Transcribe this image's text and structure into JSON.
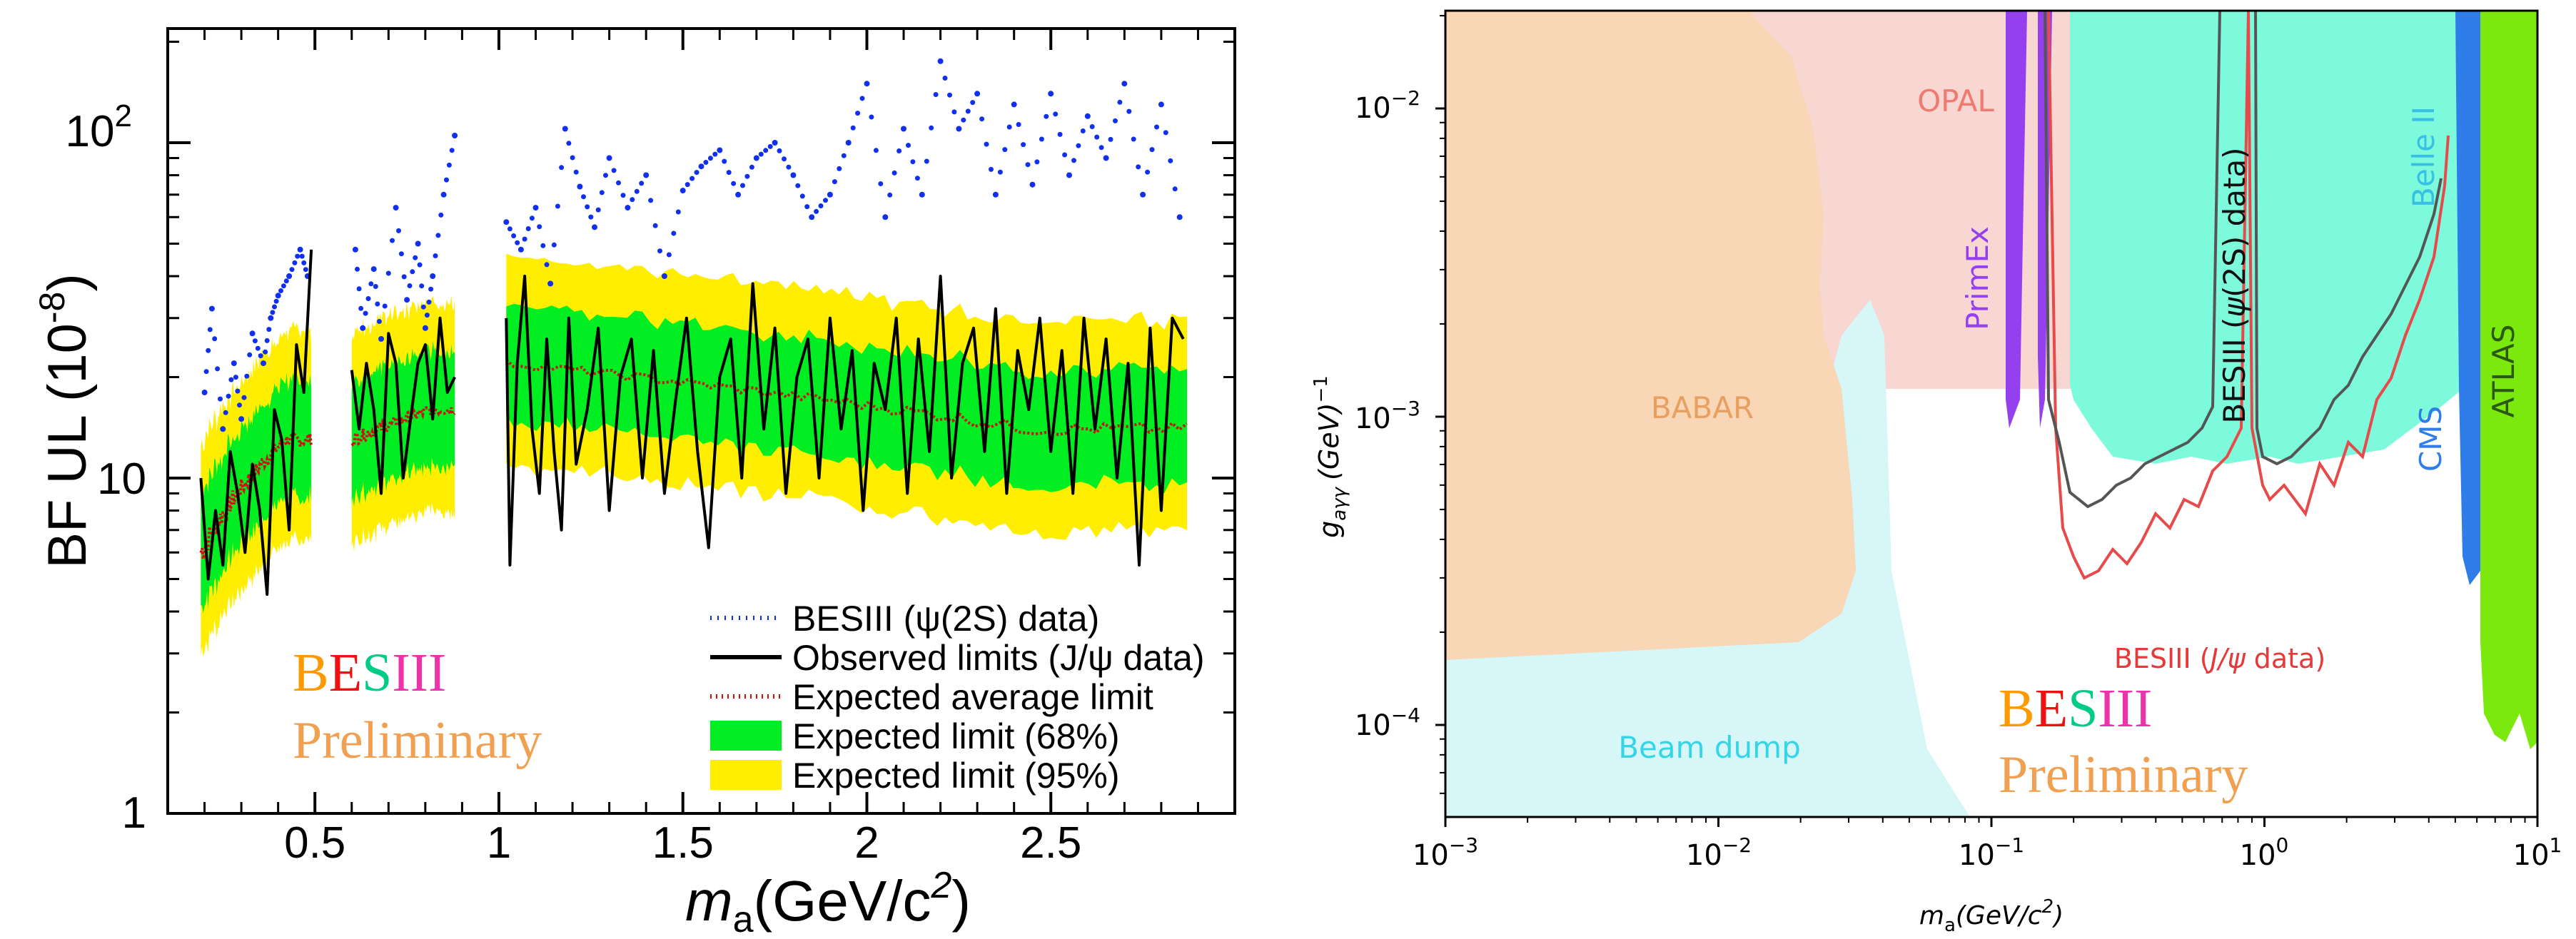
{
  "colors": {
    "expected95": "#ffee00",
    "expected68": "#00ee22",
    "observed": "#000000",
    "expected_avg": "#cc1111",
    "besiii_psi2s": "#1030ee",
    "brand_B": "#ff9900",
    "brand_E": "#ee1111",
    "brand_S": "#00cc88",
    "brand_III": "#ee33aa",
    "preliminary": "#f0a050",
    "babar": "#f8d6b6",
    "beamdump": "#d6f6f8",
    "opal": "#f8d6d2",
    "belle2": "#7dfadc",
    "primex": "#9440ee",
    "cms": "#2f7de8",
    "atlas": "#7be80e",
    "besiii_jpsi_line": "#e64a4a",
    "besiii_psi2s_line": "#666666"
  },
  "chart_data": [
    {
      "type": "line",
      "title": "",
      "xlabel_prefix": "m",
      "xlabel_sub": "a",
      "xlabel_units": "(GeV/c",
      "xlabel_sup": "2",
      "xlabel_close": ")",
      "ylabel": "BF UL (10",
      "ylabel_sup": "-8",
      "ylabel_close": ")",
      "xlim": [
        0.1,
        3.0
      ],
      "ylim": [
        1,
        200
      ],
      "yscale": "log",
      "x_ticks": [
        0.5,
        1,
        1.5,
        2,
        2.5
      ],
      "x_tick_labels": [
        "0.5",
        "1",
        "1.5",
        "2",
        "2.5"
      ],
      "y_tick_labels": {
        "one": "1",
        "ten": "10",
        "hundred_base": "10",
        "hundred_exp": "2"
      },
      "segments": [
        {
          "x0": 0.19,
          "x1": 0.49,
          "exp_start": 6.0,
          "exp_end": 13.0
        },
        {
          "x0": 0.6,
          "x1": 0.88,
          "exp_start": 13.0,
          "exp_end": 16.0
        },
        {
          "x0": 1.02,
          "x1": 2.87,
          "exp_start": 22.0,
          "exp_end": 14.0
        }
      ],
      "series": [
        {
          "name": "BESIII (ψ(2S) data)",
          "style": "dotted",
          "color": "#1030ee",
          "points": [
            [
              0.2,
              18
            ],
            [
              0.22,
              32
            ],
            [
              0.25,
              14
            ],
            [
              0.28,
              22
            ],
            [
              0.3,
              15
            ],
            [
              0.33,
              27
            ],
            [
              0.36,
              22
            ],
            [
              0.38,
              30
            ],
            [
              0.4,
              35
            ],
            [
              0.43,
              40
            ],
            [
              0.46,
              48
            ],
            [
              0.48,
              40
            ],
            [
              0.61,
              48
            ],
            [
              0.63,
              28
            ],
            [
              0.66,
              42
            ],
            [
              0.68,
              26
            ],
            [
              0.72,
              64
            ],
            [
              0.75,
              34
            ],
            [
              0.78,
              50
            ],
            [
              0.8,
              28
            ],
            [
              0.82,
              40
            ],
            [
              0.85,
              70
            ],
            [
              0.88,
              105
            ],
            [
              1.02,
              58
            ],
            [
              1.06,
              48
            ],
            [
              1.1,
              64
            ],
            [
              1.14,
              38
            ],
            [
              1.18,
              110
            ],
            [
              1.22,
              74
            ],
            [
              1.26,
              56
            ],
            [
              1.3,
              90
            ],
            [
              1.35,
              64
            ],
            [
              1.4,
              80
            ],
            [
              1.45,
              40
            ],
            [
              1.5,
              72
            ],
            [
              1.55,
              85
            ],
            [
              1.6,
              95
            ],
            [
              1.65,
              70
            ],
            [
              1.7,
              90
            ],
            [
              1.75,
              100
            ],
            [
              1.8,
              80
            ],
            [
              1.85,
              60
            ],
            [
              1.9,
              70
            ],
            [
              1.95,
              100
            ],
            [
              2.0,
              150
            ],
            [
              2.05,
              60
            ],
            [
              2.1,
              110
            ],
            [
              2.15,
              70
            ],
            [
              2.2,
              175
            ],
            [
              2.25,
              110
            ],
            [
              2.3,
              140
            ],
            [
              2.35,
              70
            ],
            [
              2.4,
              130
            ],
            [
              2.45,
              75
            ],
            [
              2.5,
              140
            ],
            [
              2.55,
              80
            ],
            [
              2.6,
              120
            ],
            [
              2.65,
              90
            ],
            [
              2.7,
              150
            ],
            [
              2.75,
              70
            ],
            [
              2.8,
              130
            ],
            [
              2.85,
              60
            ]
          ]
        },
        {
          "name": "Observed limits (J/ψ data)",
          "style": "solid",
          "color": "#000000",
          "points": [
            [
              0.19,
              10
            ],
            [
              0.21,
              5
            ],
            [
              0.23,
              8
            ],
            [
              0.25,
              5.5
            ],
            [
              0.27,
              12
            ],
            [
              0.29,
              9
            ],
            [
              0.31,
              6
            ],
            [
              0.33,
              11
            ],
            [
              0.35,
              8
            ],
            [
              0.37,
              4.5
            ],
            [
              0.39,
              16
            ],
            [
              0.41,
              13
            ],
            [
              0.43,
              7
            ],
            [
              0.45,
              25
            ],
            [
              0.47,
              18
            ],
            [
              0.49,
              48
            ],
            [
              0.6,
              21
            ],
            [
              0.62,
              14
            ],
            [
              0.64,
              22
            ],
            [
              0.66,
              16
            ],
            [
              0.68,
              9
            ],
            [
              0.7,
              27
            ],
            [
              0.72,
              22
            ],
            [
              0.74,
              10
            ],
            [
              0.76,
              15
            ],
            [
              0.78,
              22
            ],
            [
              0.8,
              25
            ],
            [
              0.82,
              15
            ],
            [
              0.84,
              30
            ],
            [
              0.86,
              18
            ],
            [
              0.88,
              20
            ],
            [
              1.02,
              30
            ],
            [
              1.03,
              5.5
            ],
            [
              1.05,
              22
            ],
            [
              1.07,
              40
            ],
            [
              1.09,
              14
            ],
            [
              1.11,
              9
            ],
            [
              1.13,
              26
            ],
            [
              1.15,
              12
            ],
            [
              1.17,
              7
            ],
            [
              1.19,
              30
            ],
            [
              1.21,
              11
            ],
            [
              1.24,
              16
            ],
            [
              1.27,
              28
            ],
            [
              1.3,
              8
            ],
            [
              1.33,
              20
            ],
            [
              1.36,
              26
            ],
            [
              1.39,
              10
            ],
            [
              1.42,
              24
            ],
            [
              1.45,
              9
            ],
            [
              1.48,
              17
            ],
            [
              1.51,
              30
            ],
            [
              1.54,
              12
            ],
            [
              1.57,
              6.2
            ],
            [
              1.6,
              20
            ],
            [
              1.63,
              26
            ],
            [
              1.66,
              10
            ],
            [
              1.69,
              38
            ],
            [
              1.72,
              14
            ],
            [
              1.75,
              28
            ],
            [
              1.78,
              9
            ],
            [
              1.81,
              20
            ],
            [
              1.84,
              26
            ],
            [
              1.87,
              10
            ],
            [
              1.9,
              30
            ],
            [
              1.93,
              14
            ],
            [
              1.96,
              24
            ],
            [
              1.99,
              8
            ],
            [
              2.02,
              22
            ],
            [
              2.05,
              16
            ],
            [
              2.08,
              30
            ],
            [
              2.11,
              9
            ],
            [
              2.14,
              26
            ],
            [
              2.17,
              12
            ],
            [
              2.2,
              40
            ],
            [
              2.23,
              10
            ],
            [
              2.26,
              22
            ],
            [
              2.29,
              28
            ],
            [
              2.32,
              12
            ],
            [
              2.35,
              32
            ],
            [
              2.38,
              9
            ],
            [
              2.41,
              24
            ],
            [
              2.44,
              16
            ],
            [
              2.47,
              30
            ],
            [
              2.5,
              12
            ],
            [
              2.53,
              24
            ],
            [
              2.56,
              9
            ],
            [
              2.59,
              30
            ],
            [
              2.62,
              14
            ],
            [
              2.65,
              26
            ],
            [
              2.68,
              10
            ],
            [
              2.71,
              22
            ],
            [
              2.74,
              5.5
            ],
            [
              2.77,
              28
            ],
            [
              2.8,
              8
            ],
            [
              2.83,
              30
            ],
            [
              2.86,
              26
            ]
          ]
        }
      ],
      "legend": {
        "placement": "bottom-right",
        "entries": [
          {
            "label": "BESIII (ψ(2S) data)",
            "kind": "dotted",
            "color": "#1030ee"
          },
          {
            "label": "Observed limits (J/ψ data)",
            "kind": "solid",
            "color": "#000000"
          },
          {
            "label": "Expected average limit",
            "kind": "dotted",
            "color": "#cc1111"
          },
          {
            "label": "Expected limit (68%)",
            "kind": "box",
            "color": "#00ee22"
          },
          {
            "label": "Expected limit (95%)",
            "kind": "box",
            "color": "#ffee00"
          }
        ]
      },
      "annotations": {
        "brand": [
          "B",
          "E",
          "S",
          "III"
        ],
        "preliminary": "Preliminary"
      }
    },
    {
      "type": "area",
      "title": "",
      "xlabel": "m_a (GeV/c^2)",
      "xlabel_prefix": "m",
      "xlabel_sub": "a",
      "xlabel_units": "(GeV/c",
      "xlabel_sup": "2",
      "xlabel_close": ")",
      "ylabel_main": "g",
      "ylabel_sub": "aγγ",
      "ylabel_units": "(GeV)",
      "ylabel_sup": "−1",
      "xscale": "log",
      "yscale": "log",
      "xlim": [
        0.001,
        10
      ],
      "ylim": [
        5e-05,
        0.02
      ],
      "x_tick_labels": [
        {
          "base": "10",
          "exp": "−3"
        },
        {
          "base": "10",
          "exp": "−2"
        },
        {
          "base": "10",
          "exp": "−1"
        },
        {
          "base": "10",
          "exp": "0"
        },
        {
          "base": "10",
          "exp": "1"
        }
      ],
      "y_tick_labels": [
        {
          "base": "10",
          "exp": "−2"
        },
        {
          "base": "10",
          "exp": "−3"
        },
        {
          "base": "10",
          "exp": "−4"
        }
      ],
      "regions": [
        {
          "name": "BABAR",
          "label": "BABAR",
          "color": "#f8d6b6"
        },
        {
          "name": "Beam dump",
          "label": "Beam dump",
          "color": "#d6f6f8"
        },
        {
          "name": "OPAL",
          "label": "OPAL",
          "color": "#f8d6d2"
        },
        {
          "name": "Belle II",
          "label": "Belle II",
          "color": "#7dfadc"
        },
        {
          "name": "PrimEx",
          "label": "PrimEx",
          "color": "#9440ee"
        },
        {
          "name": "CMS",
          "label": "CMS",
          "color": "#2f7de8"
        },
        {
          "name": "ATLAS",
          "label": "ATLAS",
          "color": "#7be80e"
        }
      ],
      "series": [
        {
          "name": "BESIII (J/ψ data)",
          "label_prefix": "BESIII (",
          "label_italic": "J/ψ",
          "label_suffix": " data)",
          "color": "#e64a4a"
        },
        {
          "name": "BESIII (ψ(2S) data)",
          "label_prefix": "BESIII (",
          "label_italic": "ψ",
          "label_suffix": "(2S) data)",
          "color": "#555555"
        }
      ],
      "annotations": {
        "brand": [
          "B",
          "E",
          "S",
          "III"
        ],
        "preliminary": "Preliminary"
      }
    }
  ]
}
